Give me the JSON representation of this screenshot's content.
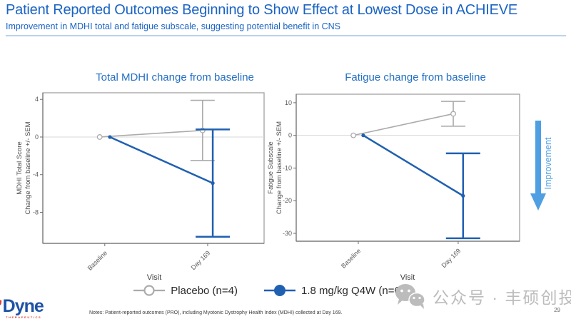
{
  "header": {
    "title": "Patient Reported Outcomes Beginning to Show Effect at Lowest Dose in ACHIEVE",
    "subtitle": "Improvement in MDHI total and fatigue subscale, suggesting potential benefit in CNS"
  },
  "chart_data": [
    {
      "type": "line",
      "title": "Total MDHI change from baseline",
      "xlabel": "Visit",
      "ylabel": "MDHI Total Score\nChange from baseline +/- SEM",
      "categories": [
        "Baseline",
        "Day 169"
      ],
      "yticks": [
        4,
        0,
        -4,
        -8
      ],
      "ylim": [
        -11.3,
        4.7
      ],
      "grid_zero_line": true,
      "series": [
        {
          "name": "Placebo (n=4)",
          "color": "#ababab",
          "marker": "open-circle",
          "values": [
            0,
            0.7
          ],
          "err_low": [
            null,
            -2.5
          ],
          "err_high": [
            null,
            3.9
          ]
        },
        {
          "name": "1.8 mg/kg Q4W (n=6)",
          "color": "#2060b0",
          "marker": "filled-circle",
          "values": [
            0,
            -4.9
          ],
          "err_low": [
            null,
            -10.6
          ],
          "err_high": [
            null,
            0.8
          ]
        }
      ]
    },
    {
      "type": "line",
      "title": "Fatigue change from baseline",
      "xlabel": "Visit",
      "ylabel": "Fatigue Subscale\nChange from baseline +/- SEM",
      "categories": [
        "Baseline",
        "Day 169"
      ],
      "yticks": [
        10,
        0,
        -10,
        -20,
        -30
      ],
      "ylim": [
        -32.4,
        12.6
      ],
      "grid_zero_line": true,
      "series": [
        {
          "name": "Placebo (n=4)",
          "color": "#ababab",
          "marker": "open-circle",
          "values": [
            0,
            6.6
          ],
          "err_low": [
            null,
            2.8
          ],
          "err_high": [
            null,
            10.4
          ]
        },
        {
          "name": "1.8 mg/kg Q4W (n=6)",
          "color": "#2060b0",
          "marker": "filled-circle",
          "values": [
            0,
            -18.5
          ],
          "err_low": [
            null,
            -31.5
          ],
          "err_high": [
            null,
            -5.5
          ]
        }
      ]
    }
  ],
  "legend": {
    "items": [
      {
        "label": "Placebo (n=4)",
        "color": "#ababab",
        "marker": "open-circle"
      },
      {
        "label": "1.8 mg/kg Q4W (n=6)",
        "color": "#2060b0",
        "marker": "filled-circle"
      }
    ]
  },
  "improvement_label": "Improvement",
  "footer": {
    "notes": "Notes: Patient-reported outcomes (PRO), including Myotonic Dystrophy Health Index (MDHI) collected at Day 169.",
    "page_number": "29",
    "logo_text": "Dyne",
    "logo_sub": "THERAPEUTICS"
  },
  "watermark": {
    "text": "公众号 · 丰硕创投",
    "icon": "wechat-icon"
  },
  "colors": {
    "accent_blue": "#1a63c4",
    "chart_title_blue": "#2470c4",
    "line_blue": "#2060b0",
    "line_gray": "#ababab",
    "improvement_blue": "#4f9fe3",
    "watermark_gray": "#bcbcbc"
  }
}
